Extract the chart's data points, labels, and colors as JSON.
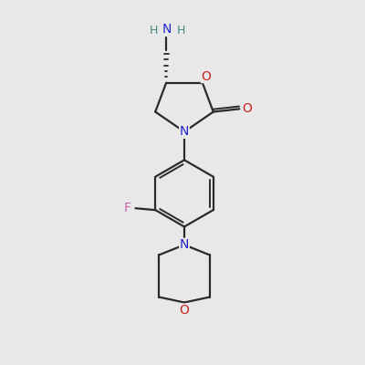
{
  "background_color": "#e8e8e8",
  "bond_color": "#2a2a2a",
  "atom_colors": {
    "N": "#2222cc",
    "O": "#cc2222",
    "F": "#cc66aa",
    "C": "#2a2a2a",
    "H": "#4a8888"
  },
  "figsize": [
    4.0,
    4.0
  ],
  "dpi": 100,
  "lw": 1.6,
  "inner_lw": 1.4,
  "fontsize": 10
}
